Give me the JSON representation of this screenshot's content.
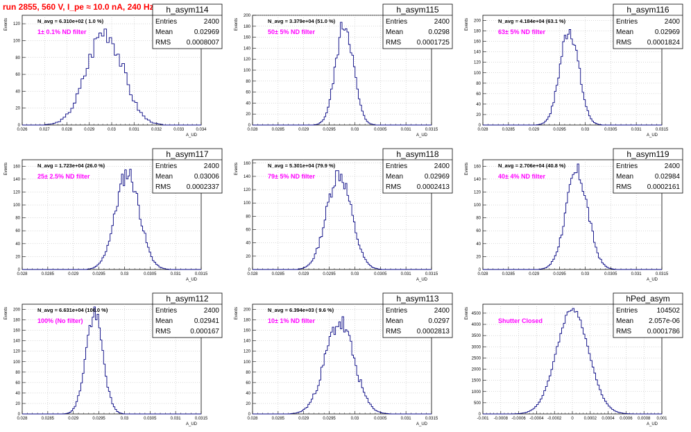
{
  "run_title": "run 2855,   560 V, I_pe ≈ 10.0 nA, 240 Hz",
  "colors": {
    "title": "#ff0000",
    "histogram": "#000080",
    "filter_label": "#ff00ff",
    "grid": "#b0b0b0"
  },
  "chart_data": [
    {
      "type": "bar",
      "histogram_name": "h_asym114",
      "stats": {
        "Entries": "2400",
        "Mean": "0.02969",
        "RMS": "0.0008007"
      },
      "navg_label": "N_avg = 6.310e+02 ( 1.0 %)",
      "filter_label": "1± 0.1% ND filter",
      "xlabel": "A_UD",
      "ylabel": "Events",
      "xlim": [
        0.026,
        0.034
      ],
      "ylim": [
        0,
        130
      ],
      "xticks": [
        "0.026",
        "0.027",
        "0.028",
        "0.029",
        "0.03",
        "0.031",
        "0.032",
        "0.033",
        "0.034"
      ],
      "yticks": [
        "0",
        "20",
        "40",
        "60",
        "80",
        "100",
        "120"
      ],
      "ytick_values": [
        0,
        20,
        40,
        60,
        80,
        100,
        120
      ],
      "mean": 0.02969,
      "rms": 0.0008007,
      "peak": 112,
      "bins": 70,
      "noise": 0.12,
      "seed": 3,
      "grid": true
    },
    {
      "type": "bar",
      "histogram_name": "h_asym115",
      "stats": {
        "Entries": "2400",
        "Mean": "0.0298",
        "RMS": "0.0001725"
      },
      "navg_label": "N_avg = 3.379e+04 (51.0 %)",
      "filter_label": "50± 5% ND filter",
      "xlabel": "A_UD",
      "ylabel": "Events",
      "xlim": [
        0.028,
        0.0315
      ],
      "ylim": [
        0,
        200
      ],
      "xticks": [
        "0.028",
        "0.0285",
        "0.029",
        "0.0295",
        "0.03",
        "0.0305",
        "0.031",
        "0.0315"
      ],
      "yticks": [
        "0",
        "20",
        "40",
        "60",
        "80",
        "100",
        "120",
        "140",
        "160",
        "180",
        "200"
      ],
      "ytick_values": [
        0,
        20,
        40,
        60,
        80,
        100,
        120,
        140,
        160,
        180,
        200
      ],
      "mean": 0.0298,
      "rms": 0.0001725,
      "peak": 185,
      "bins": 110,
      "noise": 0.1,
      "seed": 5,
      "grid": true
    },
    {
      "type": "bar",
      "histogram_name": "h_asym116",
      "stats": {
        "Entries": "2400",
        "Mean": "0.02969",
        "RMS": "0.0001824"
      },
      "navg_label": "N_avg = 4.184e+04 (63.1 %)",
      "filter_label": "63± 5% ND filter",
      "xlabel": "A_UD",
      "ylabel": "Events",
      "xlim": [
        0.028,
        0.0315
      ],
      "ylim": [
        0,
        210
      ],
      "xticks": [
        "0.028",
        "0.0285",
        "0.029",
        "0.0295",
        "0.03",
        "0.0305",
        "0.031",
        "0.0315"
      ],
      "yticks": [
        "0",
        "20",
        "40",
        "60",
        "80",
        "100",
        "120",
        "140",
        "160",
        "180",
        "200"
      ],
      "ytick_values": [
        0,
        20,
        40,
        60,
        80,
        100,
        120,
        140,
        160,
        180,
        200
      ],
      "mean": 0.02969,
      "rms": 0.0001824,
      "peak": 185,
      "bins": 110,
      "noise": 0.1,
      "seed": 7,
      "grid": true
    },
    {
      "type": "bar",
      "histogram_name": "h_asym117",
      "stats": {
        "Entries": "2400",
        "Mean": "0.03006",
        "RMS": "0.0002337"
      },
      "navg_label": "N_avg = 1.723e+04 (26.0 %)",
      "filter_label": "25± 2.5% ND filter",
      "xlabel": "A_UD",
      "ylabel": "Events",
      "xlim": [
        0.028,
        0.0315
      ],
      "ylim": [
        0,
        170
      ],
      "xticks": [
        "0.028",
        "0.0285",
        "0.029",
        "0.0295",
        "0.03",
        "0.0305",
        "0.031",
        "0.0315"
      ],
      "yticks": [
        "0",
        "20",
        "40",
        "60",
        "80",
        "100",
        "120",
        "140",
        "160"
      ],
      "ytick_values": [
        0,
        20,
        40,
        60,
        80,
        100,
        120,
        140,
        160
      ],
      "mean": 0.03006,
      "rms": 0.0002337,
      "peak": 150,
      "bins": 110,
      "noise": 0.1,
      "seed": 11,
      "grid": true
    },
    {
      "type": "bar",
      "histogram_name": "h_asym118",
      "stats": {
        "Entries": "2400",
        "Mean": "0.02969",
        "RMS": "0.0002413"
      },
      "navg_label": "N_avg = 5.301e+04 (79.9 %)",
      "filter_label": "79± 5% ND filter",
      "xlabel": "A_UD",
      "ylabel": "Events",
      "xlim": [
        0.028,
        0.0315
      ],
      "ylim": [
        0,
        165
      ],
      "xticks": [
        "0.028",
        "0.0285",
        "0.029",
        "0.0295",
        "0.03",
        "0.0305",
        "0.031",
        "0.0315"
      ],
      "yticks": [
        "0",
        "20",
        "40",
        "60",
        "80",
        "100",
        "120",
        "140",
        "160"
      ],
      "ytick_values": [
        0,
        20,
        40,
        60,
        80,
        100,
        120,
        140,
        160
      ],
      "mean": 0.02969,
      "rms": 0.0002413,
      "peak": 145,
      "bins": 110,
      "noise": 0.1,
      "seed": 13,
      "grid": true
    },
    {
      "type": "bar",
      "histogram_name": "h_asym119",
      "stats": {
        "Entries": "2400",
        "Mean": "0.02984",
        "RMS": "0.0002161"
      },
      "navg_label": "N_avg = 2.706e+04 (40.8 %)",
      "filter_label": "40± 4% ND filter",
      "xlabel": "A_UD",
      "ylabel": "Events",
      "xlim": [
        0.028,
        0.0315
      ],
      "ylim": [
        0,
        170
      ],
      "xticks": [
        "0.028",
        "0.0285",
        "0.029",
        "0.0295",
        "0.03",
        "0.0305",
        "0.031",
        "0.0315"
      ],
      "yticks": [
        "0",
        "20",
        "40",
        "60",
        "80",
        "100",
        "120",
        "140",
        "160"
      ],
      "ytick_values": [
        0,
        20,
        40,
        60,
        80,
        100,
        120,
        140,
        160
      ],
      "mean": 0.02984,
      "rms": 0.0002161,
      "peak": 150,
      "bins": 110,
      "noise": 0.1,
      "seed": 17,
      "grid": true
    },
    {
      "type": "bar",
      "histogram_name": "h_asym112",
      "stats": {
        "Entries": "2400",
        "Mean": "0.02941",
        "RMS": "0.000167"
      },
      "navg_label": "N_avg = 6.631e+04 (100.0 %)",
      "filter_label": "100% (No filter)",
      "xlabel": "A_UD",
      "ylabel": "Events",
      "xlim": [
        0.028,
        0.0315
      ],
      "ylim": [
        0,
        210
      ],
      "xticks": [
        "0.028",
        "0.0285",
        "0.029",
        "0.0295",
        "0.03",
        "0.0305",
        "0.031",
        "0.0315"
      ],
      "yticks": [
        "0",
        "20",
        "40",
        "60",
        "80",
        "100",
        "120",
        "140",
        "160",
        "180",
        "200"
      ],
      "ytick_values": [
        0,
        20,
        40,
        60,
        80,
        100,
        120,
        140,
        160,
        180,
        200
      ],
      "mean": 0.02941,
      "rms": 0.000167,
      "peak": 190,
      "bins": 110,
      "noise": 0.1,
      "seed": 19,
      "grid": true
    },
    {
      "type": "bar",
      "histogram_name": "h_asym113",
      "stats": {
        "Entries": "2400",
        "Mean": "0.0297",
        "RMS": "0.0002813"
      },
      "navg_label": "N_avg = 6.394e+03 ( 9.6 %)",
      "filter_label": "10± 1% ND filter",
      "xlabel": "A_UD",
      "ylabel": "Events",
      "xlim": [
        0.028,
        0.0315
      ],
      "ylim": [
        0,
        210
      ],
      "xticks": [
        "0.028",
        "0.0285",
        "0.029",
        "0.0295",
        "0.03",
        "0.0305",
        "0.031",
        "0.0315"
      ],
      "yticks": [
        "0",
        "20",
        "40",
        "60",
        "80",
        "100",
        "120",
        "140",
        "160",
        "180",
        "200"
      ],
      "ytick_values": [
        0,
        20,
        40,
        60,
        80,
        100,
        120,
        140,
        160,
        180,
        200
      ],
      "mean": 0.0297,
      "rms": 0.0002813,
      "peak": 175,
      "bins": 110,
      "noise": 0.12,
      "seed": 23,
      "grid": true
    },
    {
      "type": "bar",
      "histogram_name": "hPed_asym",
      "stats": {
        "Entries": "104502",
        "Mean": "2.057e-06",
        "RMS": "0.0001786"
      },
      "navg_label": "",
      "filter_label": "Shutter Closed",
      "xlabel": "A_UD",
      "ylabel": "Events",
      "xlim": [
        -0.001,
        0.001
      ],
      "ylim": [
        0,
        4900
      ],
      "xticks": [
        "-0.001",
        "-0.0008",
        "-0.0006",
        "-0.0004",
        "-0.0002",
        "0",
        "0.0002",
        "0.0004",
        "0.0006",
        "0.0008",
        "0.001"
      ],
      "yticks": [
        "0",
        "500",
        "1000",
        "1500",
        "2000",
        "2500",
        "3000",
        "3500",
        "4000",
        "4500"
      ],
      "ytick_values": [
        0,
        500,
        1000,
        1500,
        2000,
        2500,
        3000,
        3500,
        4000,
        4500
      ],
      "mean": 2.057e-06,
      "rms": 0.0001786,
      "peak": 4700,
      "bins": 100,
      "noise": 0.02,
      "seed": 29,
      "grid": true
    }
  ]
}
